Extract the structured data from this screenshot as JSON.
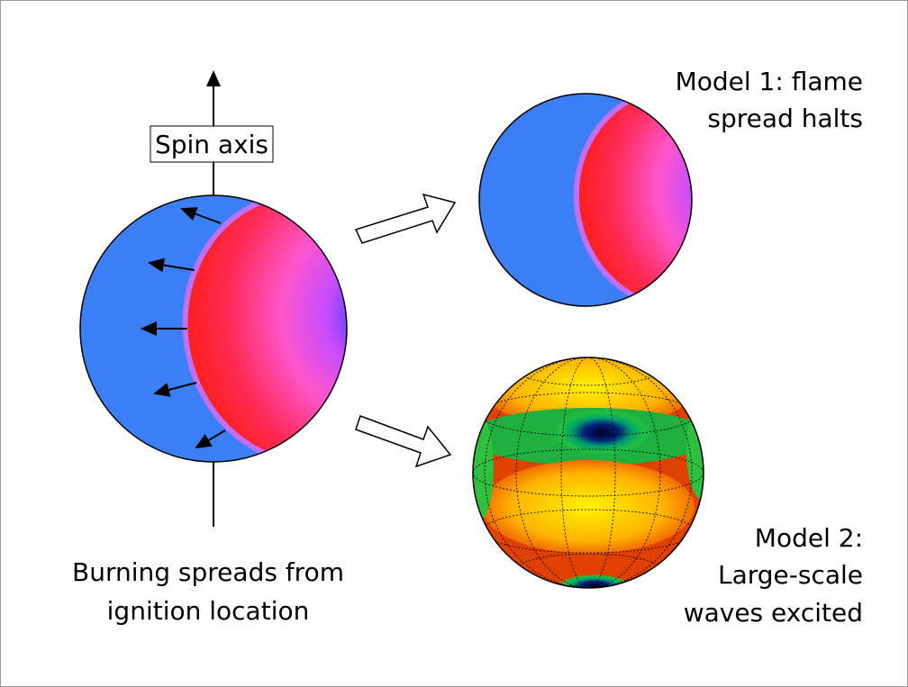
{
  "labels": {
    "spin_axis": "Spin axis",
    "ignition": [
      "Burning spreads from",
      "ignition location"
    ],
    "model1": [
      "Model 1: flame",
      "spread halts"
    ],
    "model2": [
      "Model 2:",
      "Large-scale",
      "waves excited"
    ]
  }
}
